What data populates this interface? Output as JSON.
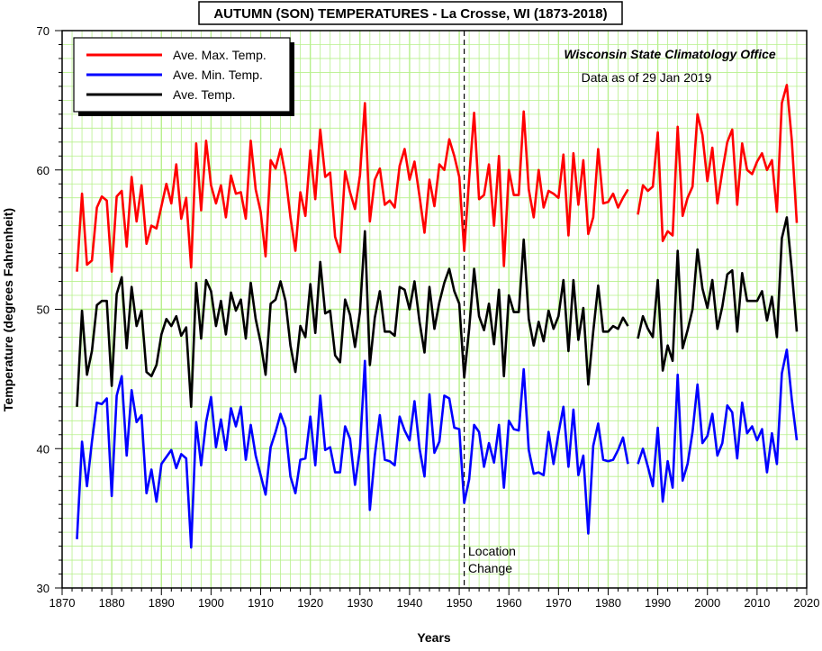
{
  "chart_data": {
    "type": "line",
    "title": "AUTUMN (SON) TEMPERATURES - La Crosse, WI (1873-2018)",
    "xlabel": "Years",
    "ylabel": "Temperature (degrees Fahrenheit)",
    "xlim": [
      1870,
      2020
    ],
    "ylim": [
      30,
      70
    ],
    "x_ticks": [
      1870,
      1880,
      1890,
      1900,
      1910,
      1920,
      1930,
      1940,
      1950,
      1960,
      1970,
      1980,
      1990,
      2000,
      2010,
      2020
    ],
    "y_ticks": [
      30,
      40,
      50,
      60,
      70
    ],
    "grid": true,
    "legend_position": "top-left",
    "annotations": {
      "office": "Wisconsin State Climatology Office",
      "data_date": "Data as of 29 Jan 2019",
      "location_change_line1": "Location",
      "location_change_line2": "Change"
    },
    "location_change_year": 1951,
    "colors": {
      "max": "#ff0000",
      "min": "#0000ff",
      "avg": "#000000",
      "grid": "#b7f08c",
      "border": "#000000"
    },
    "x": [
      1873,
      1874,
      1875,
      1876,
      1877,
      1878,
      1879,
      1880,
      1881,
      1882,
      1883,
      1884,
      1885,
      1886,
      1887,
      1888,
      1889,
      1890,
      1891,
      1892,
      1893,
      1894,
      1895,
      1896,
      1897,
      1898,
      1899,
      1900,
      1901,
      1902,
      1903,
      1904,
      1905,
      1906,
      1907,
      1908,
      1909,
      1910,
      1911,
      1912,
      1913,
      1914,
      1915,
      1916,
      1917,
      1918,
      1919,
      1920,
      1921,
      1922,
      1923,
      1924,
      1925,
      1926,
      1927,
      1928,
      1929,
      1930,
      1931,
      1932,
      1933,
      1934,
      1935,
      1936,
      1937,
      1938,
      1939,
      1940,
      1941,
      1942,
      1943,
      1944,
      1945,
      1946,
      1947,
      1948,
      1949,
      1950,
      1951,
      1952,
      1953,
      1954,
      1955,
      1956,
      1957,
      1958,
      1959,
      1960,
      1961,
      1962,
      1963,
      1964,
      1965,
      1966,
      1967,
      1968,
      1969,
      1970,
      1971,
      1972,
      1973,
      1974,
      1975,
      1976,
      1977,
      1978,
      1979,
      1980,
      1981,
      1982,
      1983,
      1984,
      1985,
      1986,
      1987,
      1988,
      1989,
      1990,
      1991,
      1992,
      1993,
      1994,
      1995,
      1996,
      1997,
      1998,
      1999,
      2000,
      2001,
      2002,
      2003,
      2004,
      2005,
      2006,
      2007,
      2008,
      2009,
      2010,
      2011,
      2012,
      2013,
      2014,
      2015,
      2016,
      2017,
      2018
    ],
    "series": [
      {
        "name": "Ave. Max. Temp.",
        "key": "max",
        "values": [
          52.7,
          58.3,
          53.2,
          53.5,
          57.3,
          58.1,
          57.8,
          52.7,
          58.1,
          58.5,
          54.5,
          59.5,
          56.3,
          58.9,
          54.7,
          56.0,
          55.8,
          57.4,
          59.0,
          57.6,
          60.4,
          56.5,
          58.0,
          53.0,
          61.9,
          57.1,
          62.1,
          58.9,
          57.6,
          58.9,
          56.6,
          59.6,
          58.3,
          58.4,
          56.5,
          62.1,
          58.6,
          57.0,
          53.8,
          60.7,
          60.1,
          61.5,
          59.6,
          56.6,
          54.2,
          58.4,
          56.7,
          61.4,
          57.9,
          62.9,
          59.5,
          59.8,
          55.2,
          54.1,
          59.9,
          58.4,
          57.2,
          59.6,
          64.8,
          56.3,
          59.3,
          60.1,
          57.5,
          57.8,
          57.3,
          60.3,
          61.5,
          59.3,
          60.6,
          58.1,
          55.5,
          59.3,
          57.4,
          60.4,
          60.0,
          62.2,
          61.0,
          59.5,
          54.2,
          59.4,
          64.1,
          57.9,
          58.2,
          60.4,
          56.0,
          61.0,
          53.1,
          60.0,
          58.2,
          58.2,
          64.2,
          58.6,
          56.6,
          60.0,
          57.3,
          58.5,
          58.3,
          58.0,
          61.1,
          55.3,
          61.2,
          57.5,
          60.7,
          55.4,
          56.6,
          61.5,
          57.6,
          57.7,
          58.3,
          57.3,
          58.0,
          58.6,
          null,
          56.8,
          58.9,
          58.5,
          58.8,
          62.7,
          54.9,
          55.6,
          55.3,
          63.1,
          56.7,
          58.0,
          58.8,
          64.0,
          62.5,
          59.2,
          61.6,
          57.6,
          59.9,
          62.0,
          62.9,
          57.5,
          61.9,
          60.0,
          59.7,
          60.6,
          61.2,
          60.0,
          60.7,
          57.0,
          64.8,
          66.1,
          62.1,
          56.2
        ]
      },
      {
        "name": "Ave. Min. Temp.",
        "key": "min",
        "values": [
          33.5,
          40.5,
          37.3,
          40.5,
          43.3,
          43.2,
          43.6,
          36.6,
          43.8,
          45.2,
          39.5,
          44.2,
          41.9,
          42.4,
          36.8,
          38.5,
          36.2,
          38.9,
          39.4,
          39.9,
          38.6,
          39.6,
          39.3,
          32.9,
          41.9,
          38.8,
          41.9,
          43.7,
          40.1,
          42.1,
          39.9,
          42.9,
          41.6,
          43.0,
          39.2,
          41.7,
          39.5,
          38.1,
          36.7,
          40.1,
          41.2,
          42.5,
          41.5,
          38.0,
          36.8,
          39.2,
          39.3,
          42.3,
          38.8,
          43.8,
          39.9,
          40.1,
          38.3,
          38.3,
          41.6,
          40.7,
          37.4,
          40.0,
          46.3,
          35.6,
          39.5,
          42.4,
          39.2,
          39.1,
          38.8,
          42.3,
          41.3,
          40.6,
          43.4,
          40.0,
          38.0,
          43.9,
          39.7,
          40.5,
          43.8,
          43.6,
          41.5,
          41.4,
          36.1,
          37.8,
          41.7,
          41.2,
          38.7,
          40.4,
          39.0,
          41.7,
          37.2,
          42.0,
          41.4,
          41.3,
          45.7,
          39.9,
          38.2,
          38.3,
          38.1,
          41.2,
          38.9,
          41.1,
          43.0,
          38.7,
          42.8,
          38.1,
          39.5,
          33.9,
          40.2,
          41.8,
          39.2,
          39.1,
          39.2,
          39.9,
          40.8,
          38.9,
          null,
          38.9,
          40.0,
          38.7,
          37.3,
          41.5,
          36.2,
          39.1,
          37.2,
          45.3,
          37.7,
          38.9,
          41.2,
          44.6,
          40.4,
          40.9,
          42.5,
          39.5,
          40.4,
          43.1,
          42.6,
          39.3,
          43.3,
          41.1,
          41.6,
          40.6,
          41.4,
          38.3,
          41.1,
          38.9,
          45.4,
          47.1,
          43.5,
          40.6
        ]
      },
      {
        "name": "Ave. Temp.",
        "key": "avg",
        "values": [
          43.0,
          49.9,
          45.3,
          47.0,
          50.3,
          50.6,
          50.6,
          44.5,
          51.1,
          52.3,
          47.2,
          51.6,
          48.8,
          49.9,
          45.5,
          45.2,
          46.0,
          48.2,
          49.3,
          48.8,
          49.5,
          48.1,
          48.7,
          43.0,
          51.9,
          47.9,
          52.1,
          51.3,
          48.8,
          50.6,
          48.2,
          51.2,
          49.9,
          50.7,
          47.9,
          51.9,
          49.3,
          47.6,
          45.3,
          50.4,
          50.7,
          52.0,
          50.6,
          47.4,
          45.5,
          48.8,
          48.0,
          51.8,
          48.3,
          53.4,
          49.7,
          49.9,
          46.7,
          46.2,
          50.7,
          49.6,
          47.3,
          49.8,
          55.6,
          46.0,
          49.4,
          51.3,
          48.4,
          48.4,
          48.1,
          51.6,
          51.4,
          50.0,
          52.0,
          49.1,
          46.9,
          51.6,
          48.6,
          50.5,
          51.9,
          52.9,
          51.3,
          50.4,
          45.1,
          48.6,
          52.9,
          49.5,
          48.5,
          50.4,
          47.5,
          51.4,
          45.2,
          51.0,
          49.8,
          49.8,
          55.0,
          49.3,
          47.4,
          49.1,
          47.7,
          49.9,
          48.6,
          49.5,
          52.1,
          47.0,
          52.1,
          47.8,
          50.1,
          44.6,
          48.4,
          51.7,
          48.4,
          48.4,
          48.8,
          48.6,
          49.4,
          48.8,
          null,
          47.9,
          49.5,
          48.6,
          48.0,
          52.1,
          45.6,
          47.4,
          46.3,
          54.2,
          47.2,
          48.5,
          50.0,
          54.3,
          51.5,
          50.1,
          52.1,
          48.6,
          50.2,
          52.5,
          52.8,
          48.4,
          52.6,
          50.6,
          50.6,
          50.6,
          51.3,
          49.2,
          50.9,
          48.0,
          55.1,
          56.6,
          52.8,
          48.4
        ]
      }
    ]
  }
}
